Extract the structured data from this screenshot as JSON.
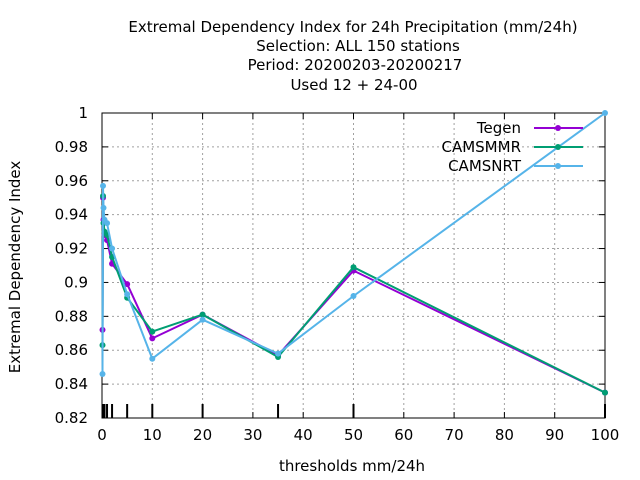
{
  "chart_data": {
    "type": "line",
    "title_lines": [
      "Extremal Dependency Index  for 24h Precipitation (mm/24h)",
      "Selection: ALL    150 stations",
      "Period: 20200203-20200217",
      "Used  12 + 24-00"
    ],
    "xlabel": "thresholds mm/24h",
    "ylabel": "Extremal Dependency Index",
    "xlim": [
      0,
      100
    ],
    "ylim": [
      0.82,
      1.0
    ],
    "xticks": [
      0,
      10,
      20,
      30,
      40,
      50,
      60,
      70,
      80,
      90,
      100
    ],
    "yticks": [
      0.82,
      0.84,
      0.86,
      0.88,
      0.9,
      0.92,
      0.94,
      0.96,
      0.98,
      1.0
    ],
    "ytick_labels": [
      "0.82",
      "0.84",
      "0.86",
      "0.88",
      "0.9",
      "0.92",
      "0.94",
      "0.96",
      "0.98",
      "1"
    ],
    "grid": true,
    "legend_position": "top-right",
    "threshold_marks": [
      0.1,
      0.2,
      0.3,
      0.5,
      1,
      2,
      5,
      10,
      20,
      35,
      50,
      100
    ],
    "series": [
      {
        "name": "Tegen",
        "color": "#9400d3",
        "x": [
          0.1,
          0.2,
          0.3,
          0.5,
          1,
          2,
          5,
          10,
          20,
          35,
          50,
          100
        ],
        "y": [
          0.872,
          0.95,
          0.937,
          0.928,
          0.925,
          0.911,
          0.899,
          0.867,
          0.881,
          0.857,
          0.907,
          0.835
        ]
      },
      {
        "name": "CAMSMMR",
        "color": "#009e73",
        "x": [
          0.1,
          0.2,
          0.3,
          0.5,
          1,
          2,
          5,
          10,
          20,
          35,
          50,
          100
        ],
        "y": [
          0.863,
          0.951,
          0.935,
          0.93,
          0.928,
          0.915,
          0.891,
          0.871,
          0.881,
          0.856,
          0.909,
          0.835
        ]
      },
      {
        "name": "CAMSNRT",
        "color": "#56b4e9",
        "x": [
          0.1,
          0.2,
          0.3,
          0.5,
          1,
          2,
          5,
          10,
          20,
          35,
          50,
          100
        ],
        "y": [
          0.846,
          0.957,
          0.944,
          0.937,
          0.935,
          0.92,
          0.893,
          0.855,
          0.878,
          0.858,
          0.892,
          1.0
        ]
      }
    ]
  }
}
